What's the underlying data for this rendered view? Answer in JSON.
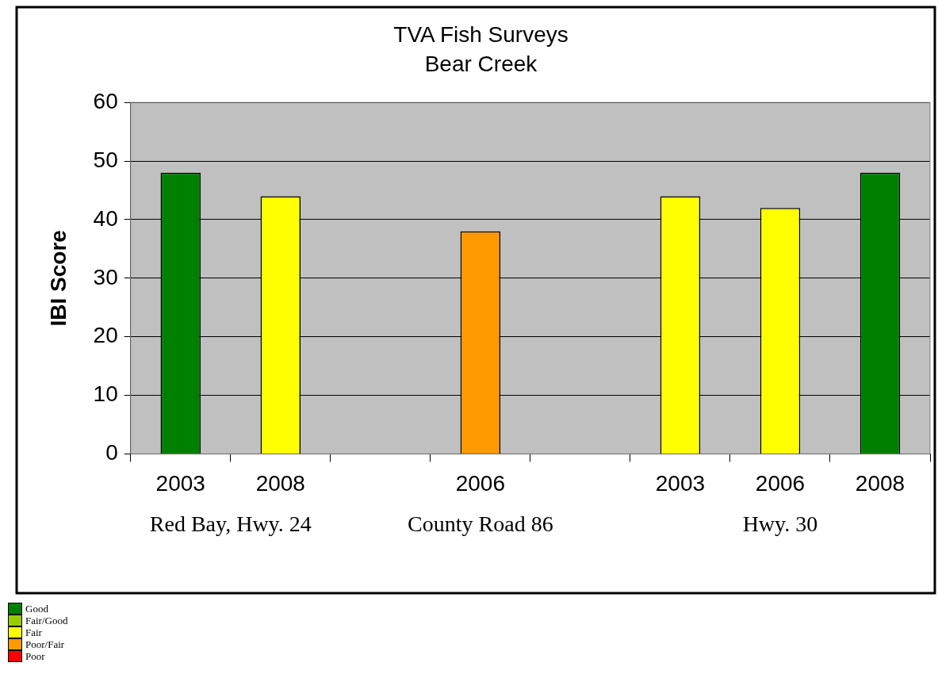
{
  "chart_data": {
    "type": "bar",
    "title": "TVA Fish Surveys",
    "subtitle": "Bear Creek",
    "ylabel": "IBI Score",
    "categories": [
      "2003",
      "2008",
      null,
      "2006",
      null,
      "2003",
      "2006",
      "2008"
    ],
    "series": [
      {
        "name": "Good",
        "color": "#008000",
        "values": [
          48,
          null,
          null,
          null,
          null,
          null,
          null,
          48
        ]
      },
      {
        "name": "Fair/Good",
        "color": "#99cc00",
        "values": [
          null,
          null,
          null,
          null,
          null,
          null,
          null,
          null
        ]
      },
      {
        "name": "Fair",
        "color": "#ffff00",
        "values": [
          null,
          44,
          null,
          null,
          null,
          44,
          42,
          null
        ]
      },
      {
        "name": "Poor/Fair",
        "color": "#ff9900",
        "values": [
          null,
          null,
          null,
          38,
          null,
          null,
          null,
          null
        ]
      },
      {
        "name": "Poor",
        "color": "#ff0000",
        "values": [
          null,
          null,
          null,
          null,
          null,
          null,
          null,
          null
        ]
      }
    ],
    "ylim": [
      0,
      60
    ],
    "yticks": [
      0,
      10,
      20,
      30,
      40,
      50,
      60
    ],
    "grid": "y",
    "legend": "bottom left",
    "annotations": [
      "Red Bay, Hwy. 24",
      "County Road 86",
      "Hwy. 30"
    ]
  }
}
